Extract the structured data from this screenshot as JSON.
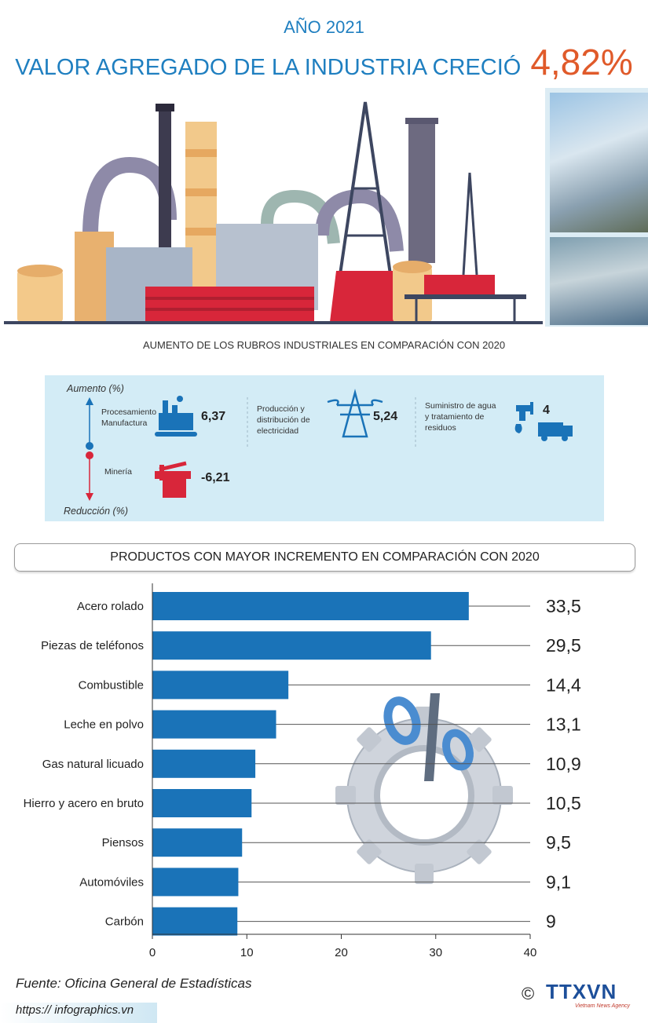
{
  "header": {
    "year": "AÑO 2021",
    "title": "VALOR AGREGADO DE LA INDUSTRIA CRECIÓ",
    "growth": "4,82%"
  },
  "section1": {
    "subtitle": "AUMENTO DE LOS RUBROS INDUSTRIALES EN COMPARACIÓN CON 2020",
    "increase_label": "Aumento (%)",
    "decrease_label": "Reducción (%)",
    "items": [
      {
        "label_line1": "Procesamiento",
        "label_line2": "Manufactura",
        "value": "6,37"
      },
      {
        "label_line1": "Producción y",
        "label_line2": "distribución de",
        "label_line3": "electricidad",
        "value": "5,24"
      },
      {
        "label_line1": "Suministro de agua",
        "label_line2": "y tratamiento de",
        "label_line3": "residuos",
        "value": "4"
      },
      {
        "label_line1": "Minería",
        "value": "-6,21"
      }
    ],
    "colors": {
      "increase": "#1a73b8",
      "decrease": "#d8263a"
    }
  },
  "section2": {
    "title": "PRODUCTOS CON MAYOR INCREMENTO EN COMPARACIÓN CON 2020"
  },
  "chart_data": {
    "type": "bar",
    "orientation": "horizontal",
    "categories": [
      "Acero rolado",
      "Piezas de teléfonos",
      "Combustible",
      "Leche en polvo",
      "Gas natural licuado",
      "Hierro y acero en bruto",
      "Piensos",
      "Automóviles",
      "Carbón"
    ],
    "values": [
      33.5,
      29.5,
      14.4,
      13.1,
      10.9,
      10.5,
      9.5,
      9.1,
      9
    ],
    "value_labels": [
      "33,5",
      "29,5",
      "14,4",
      "13,1",
      "10,9",
      "10,5",
      "9,5",
      "9,1",
      "9"
    ],
    "xlim": [
      0,
      40
    ],
    "xticks": [
      0,
      10,
      20,
      30,
      40
    ],
    "bar_color": "#1a73b8",
    "grid": false
  },
  "footer": {
    "source": "Fuente: Oficina General de Estadísticas",
    "url": "https:// infographics.vn",
    "copyright": "©",
    "logo": "TTXVN",
    "logo_sub": "Vietnam News Agency"
  }
}
